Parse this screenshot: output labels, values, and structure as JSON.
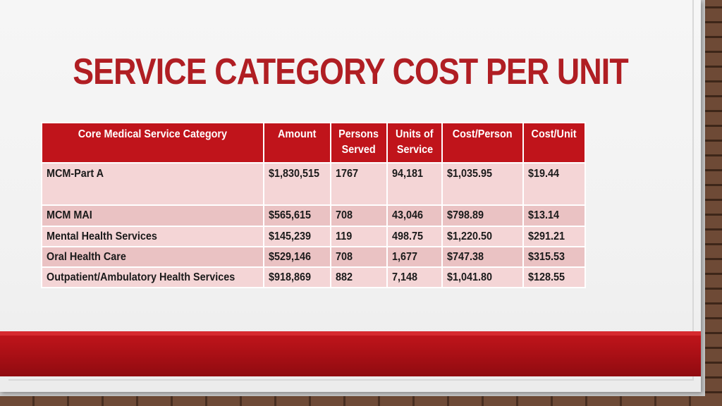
{
  "slide": {
    "title": "SERVICE CATEGORY COST PER UNIT",
    "colors": {
      "accent_red": "#b01e23",
      "header_red": "#c0141b",
      "row_pink": "#f4d5d6"
    }
  },
  "table": {
    "headers": [
      {
        "line1": "Core Medical Service Category",
        "line2": ""
      },
      {
        "line1": "Amount",
        "line2": ""
      },
      {
        "line1": "Persons",
        "line2": "Served"
      },
      {
        "line1": "Units of",
        "line2": "Service"
      },
      {
        "line1": "Cost/Person",
        "line2": ""
      },
      {
        "line1": "Cost/Unit",
        "line2": ""
      }
    ],
    "rows": [
      [
        "MCM-Part A",
        "$1,830,515",
        "1767",
        "94,181",
        "$1,035.95",
        "$19.44"
      ],
      [
        "MCM MAI",
        "$565,615",
        "708",
        "43,046",
        "$798.89",
        "$13.14"
      ],
      [
        "Mental Health Services",
        "$145,239",
        "119",
        "498.75",
        "$1,220.50",
        "$291.21"
      ],
      [
        "Oral Health Care",
        "$529,146",
        "708",
        "1,677",
        "$747.38",
        "$315.53"
      ],
      [
        "Outpatient/Ambulatory Health Services",
        "$918,869",
        "882",
        "7,148",
        "$1,041.80",
        "$128.55"
      ]
    ]
  }
}
